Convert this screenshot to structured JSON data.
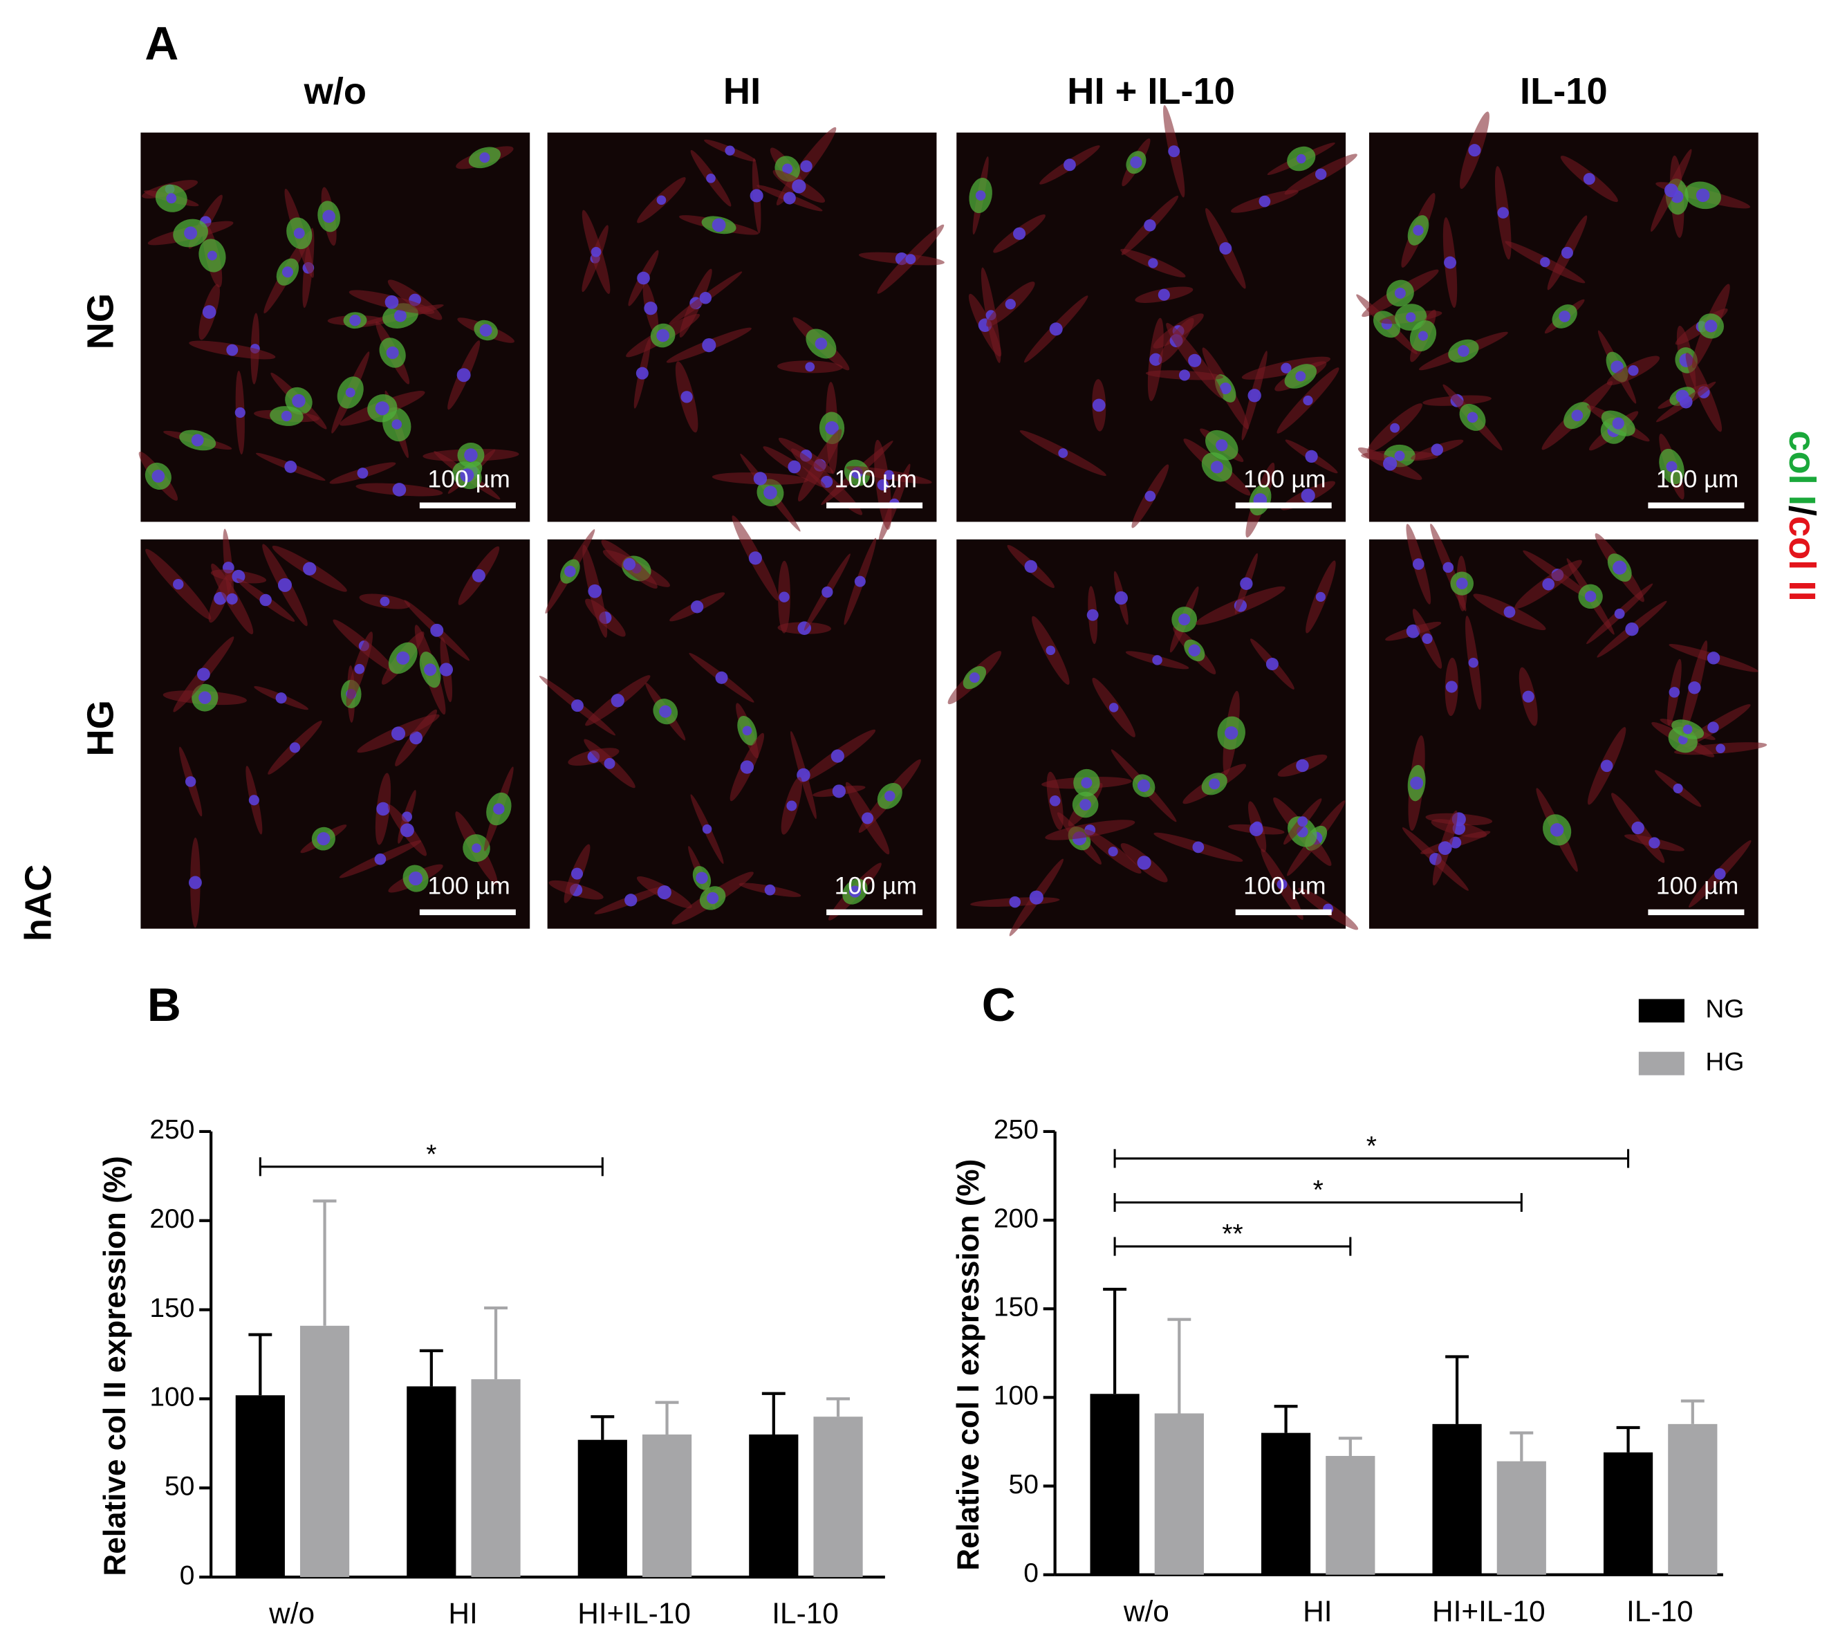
{
  "panel_a": {
    "label": "A",
    "columns": [
      "w/o",
      "HI",
      "HI + IL-10",
      "IL-10"
    ],
    "rows": [
      "NG",
      "HG"
    ],
    "scale_bar": "100 µm",
    "side_label": "hAC",
    "stain": [
      {
        "text": "col I",
        "color": "#1aa83a"
      },
      {
        "text": "/",
        "color": "#000000"
      },
      {
        "text": "col II",
        "color": "#e3141b"
      }
    ]
  },
  "chart_data": [
    {
      "type": "bar",
      "panel_label": "B",
      "ylabel": "Relative col II expression (%)",
      "categories": [
        "w/o",
        "HI",
        "HI+IL-10",
        "IL-10"
      ],
      "series": [
        {
          "name": "NG",
          "color": "#000000",
          "values": [
            102,
            107,
            77,
            80
          ],
          "errors": [
            34,
            20,
            13,
            23
          ]
        },
        {
          "name": "HG",
          "color": "#a6a6a8",
          "values": [
            141,
            111,
            80,
            90
          ],
          "errors": [
            70,
            40,
            18,
            10
          ]
        }
      ],
      "ylim": [
        0,
        250
      ],
      "yticks": [
        0,
        50,
        100,
        150,
        200,
        250
      ],
      "legend": "none",
      "significance": [
        {
          "from": "w/o",
          "to": "HI+IL-10",
          "to_series": "NG",
          "label": "*"
        }
      ]
    },
    {
      "type": "bar",
      "panel_label": "C",
      "ylabel": "Relative col I expression (%)",
      "categories": [
        "w/o",
        "HI",
        "HI+IL-10",
        "IL-10"
      ],
      "series": [
        {
          "name": "NG",
          "color": "#000000",
          "values": [
            102,
            80,
            85,
            69
          ],
          "errors": [
            59,
            15,
            38,
            14
          ]
        },
        {
          "name": "HG",
          "color": "#a6a6a8",
          "values": [
            91,
            67,
            64,
            85
          ],
          "errors": [
            53,
            10,
            16,
            13
          ]
        }
      ],
      "ylim": [
        0,
        250
      ],
      "yticks": [
        0,
        50,
        100,
        150,
        200,
        250
      ],
      "legend": "top-right",
      "significance": [
        {
          "from": "w/o",
          "to": "IL-10",
          "to_series": "NG",
          "label": "*"
        },
        {
          "from": "w/o",
          "to": "HI+IL-10",
          "to_series": "HG",
          "label": "*"
        },
        {
          "from": "w/o",
          "to": "HI",
          "to_series": "HG",
          "label": "**"
        }
      ]
    }
  ]
}
